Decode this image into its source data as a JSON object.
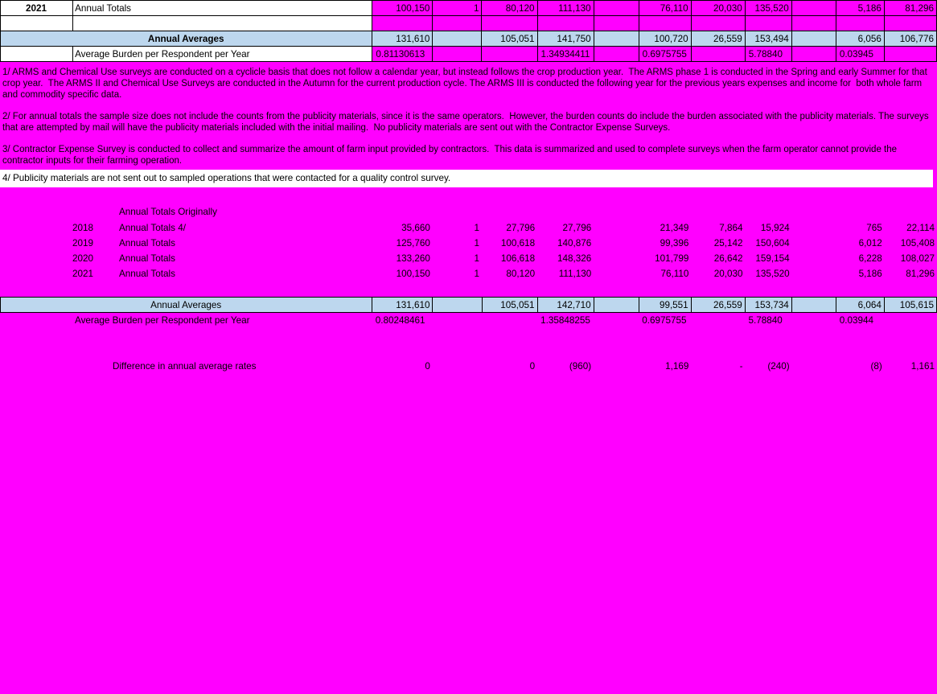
{
  "colors": {
    "magenta_highlight": "#FF00FF",
    "light_blue_row": "#BDD7EE",
    "grid_line": "#000000",
    "white_cell": "#FFFFFF"
  },
  "top_table": {
    "year_row": {
      "year": "2021",
      "label": "Annual Totals",
      "values": [
        "100,150",
        "1",
        "80,120",
        "111,130",
        "",
        "76,110",
        "20,030",
        "135,520",
        "",
        "5,186",
        "81,296"
      ]
    },
    "empty_row": {
      "values": [
        "",
        "",
        "",
        "",
        "",
        "",
        "",
        "",
        "",
        "",
        ""
      ]
    },
    "averages_row": {
      "label": "Annual Averages",
      "values": [
        "131,610",
        "",
        "105,051",
        "141,750",
        "",
        "100,720",
        "26,559",
        "153,494",
        "",
        "6,056",
        "106,776"
      ]
    },
    "burden_row": {
      "label": "Average Burden per Respondent per Year",
      "values": [
        "0.81130613",
        "",
        "",
        "1.34934411",
        "",
        "0.6975755",
        "",
        "5.78840",
        "",
        "0.03945",
        ""
      ]
    }
  },
  "notes": {
    "note1": "1/ ARMS and Chemical Use surveys are conducted on a cyclicle basis that does not follow a calendar year, but instead follows the crop production year.  The ARMS phase 1 is conducted in the Spring and early Summer for that crop year.  The ARMS II and Chemical Use Surveys are conducted in the Autumn for the current production cycle. The ARMS III is conducted the following year for the previous years expenses and income for  both whole farm and commodity specific data.",
    "note2": "2/ For annual totals the sample size does not include the counts from the publicity materials, since it is the same operators.  However, the burden counts do include the burden associated with the publicity materials. The surveys that are attempted by mail will have the publicity materials included with the initial mailing.  No publicity materials are sent out with the Contractor Expense Surveys.",
    "note3": "3/ Contractor Expense Survey is conducted to collect and summarize the amount of farm input provided by contractors.  This data is summarized and used to complete surveys when the farm operator cannot provide the contractor inputs for their farming operation.",
    "note4": "4/ Publicity materials are not sent out to sampled operations that were contacted for a quality control survey."
  },
  "original_section": {
    "heading": "Annual Totals Originally",
    "rows": [
      {
        "year": "2018",
        "label": "Annual Totals 4/",
        "values": [
          "35,660",
          "1",
          "27,796",
          "27,796",
          "",
          "21,349",
          "7,864",
          "15,924",
          "",
          "765",
          "22,114"
        ]
      },
      {
        "year": "2019",
        "label": "Annual Totals",
        "values": [
          "125,760",
          "1",
          "100,618",
          "140,876",
          "",
          "99,396",
          "25,142",
          "150,604",
          "",
          "6,012",
          "105,408"
        ]
      },
      {
        "year": "2020",
        "label": "Annual Totals",
        "values": [
          "133,260",
          "1",
          "106,618",
          "148,326",
          "",
          "101,799",
          "26,642",
          "159,154",
          "",
          "6,228",
          "108,027"
        ]
      },
      {
        "year": "2021",
        "label": "Annual Totals",
        "values": [
          "100,150",
          "1",
          "80,120",
          "111,130",
          "",
          "76,110",
          "20,030",
          "135,520",
          "",
          "5,186",
          "81,296"
        ]
      }
    ],
    "averages_row": {
      "label": "Annual Averages",
      "values": [
        "131,610",
        "",
        "105,051",
        "142,710",
        "",
        "99,551",
        "26,559",
        "153,734",
        "",
        "6,064",
        "105,615"
      ]
    },
    "burden_row": {
      "label": "Average Burden per Respondent per Year",
      "values": [
        "0.80248461",
        "",
        "",
        "1.35848255",
        "",
        "0.6975755",
        "",
        "5.78840",
        "",
        "0.03944",
        ""
      ]
    },
    "difference_row": {
      "label": "Difference in annual average rates",
      "values": [
        "0",
        "",
        "0",
        "(960)",
        "",
        "1,169",
        "-",
        "(240)",
        "",
        "(8)",
        "1,161"
      ]
    }
  }
}
